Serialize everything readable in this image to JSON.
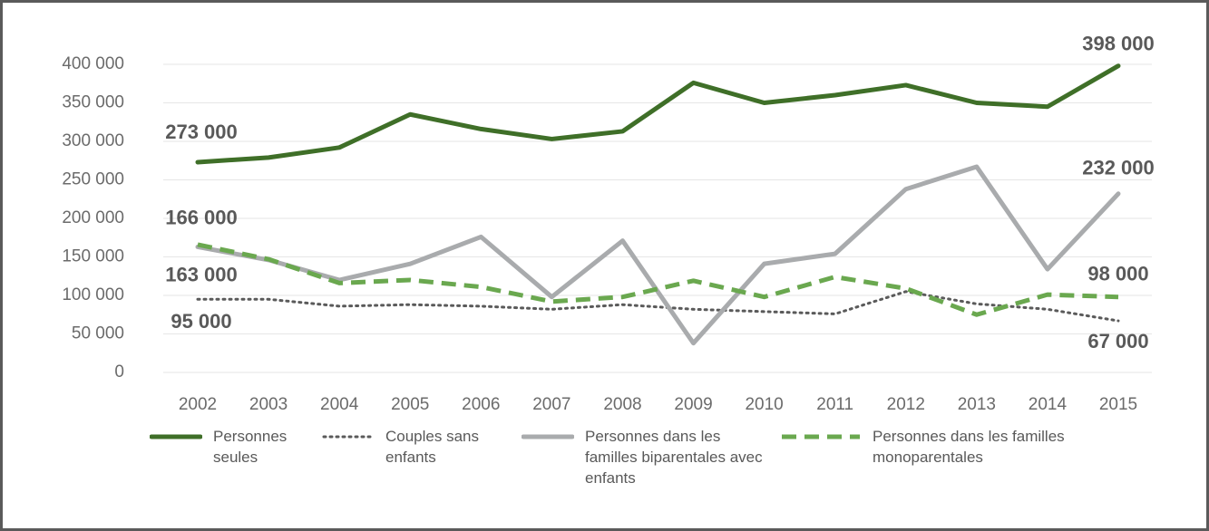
{
  "chart_data": {
    "type": "line",
    "x": [
      2002,
      2003,
      2004,
      2005,
      2006,
      2007,
      2008,
      2009,
      2010,
      2011,
      2012,
      2013,
      2014,
      2015
    ],
    "xlim": [
      2002,
      2015
    ],
    "xticks": [
      2002,
      2003,
      2004,
      2005,
      2006,
      2007,
      2008,
      2009,
      2010,
      2011,
      2012,
      2013,
      2014,
      2015
    ],
    "ylim": [
      0,
      400000
    ],
    "yticks": [
      0,
      {
        "value": 50000,
        "label": "50 000"
      },
      {
        "value": 100000,
        "label": "100 000"
      },
      {
        "value": 150000,
        "label": "150 000"
      },
      {
        "value": 200000,
        "label": "200 000"
      },
      {
        "value": 250000,
        "label": "250 000"
      },
      {
        "value": 300000,
        "label": "300 000"
      },
      {
        "value": 350000,
        "label": "350 000"
      },
      {
        "value": 400000,
        "label": "400 000"
      }
    ],
    "grid": true,
    "legend": "bottom",
    "series": [
      {
        "name": "Personnes seules",
        "color": "#3f6f28",
        "style": "solid",
        "values": [
          273000,
          279000,
          292000,
          335000,
          316000,
          303000,
          313000,
          376000,
          350000,
          360000,
          373000,
          350000,
          345000,
          398000
        ],
        "value_labels": [
          "273 000",
          null,
          null,
          null,
          null,
          null,
          null,
          null,
          null,
          null,
          null,
          null,
          null,
          "398 000"
        ]
      },
      {
        "name": "Couples sans enfants",
        "color": "#5a5a5a",
        "style": "dotted",
        "values": [
          95000,
          95000,
          86000,
          88000,
          86000,
          82000,
          88000,
          82000,
          79000,
          76000,
          105000,
          89000,
          82000,
          67000
        ],
        "value_labels": [
          "95 000",
          null,
          null,
          null,
          null,
          null,
          null,
          null,
          null,
          null,
          null,
          null,
          null,
          "67 000"
        ]
      },
      {
        "name": "Personnes dans les familles biparentales avec enfants",
        "color": "#a9abad",
        "style": "solid",
        "values": [
          163000,
          146000,
          120000,
          141000,
          176000,
          98000,
          171000,
          38000,
          141000,
          154000,
          238000,
          267000,
          134000,
          232000
        ],
        "value_labels": [
          "163 000",
          null,
          null,
          null,
          null,
          null,
          null,
          null,
          null,
          null,
          null,
          null,
          null,
          "232 000"
        ]
      },
      {
        "name": "Personnes dans les familles monoparentales",
        "color": "#6aa84f",
        "style": "dashed",
        "values": [
          166000,
          147000,
          116000,
          120000,
          111000,
          92000,
          98000,
          119000,
          98000,
          124000,
          109000,
          75000,
          101000,
          98000
        ],
        "value_labels": [
          "166 000",
          null,
          null,
          null,
          null,
          null,
          null,
          null,
          null,
          null,
          null,
          null,
          null,
          "98 000"
        ]
      }
    ]
  }
}
